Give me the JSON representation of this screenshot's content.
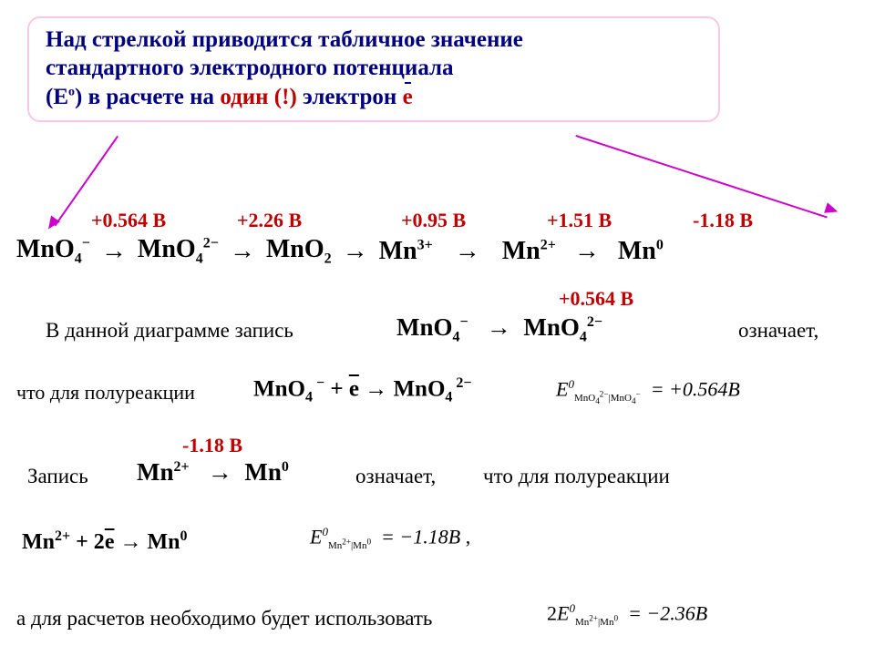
{
  "header": {
    "line1": "Над стрелкой приводится табличное значение",
    "line2": "стандартного электродного потенциала",
    "line3_a": "(E",
    "line3_sup": "о",
    "line3_b": ") в расчете на ",
    "line3_red": "один (!)",
    "line3_c": " электрон ",
    "line3_ebar": "е"
  },
  "chain": {
    "potentials": [
      "+0.564 В",
      "+2.26 В",
      "+0.95 В",
      "+1.51 В",
      "-1.18 В"
    ],
    "potential_widths": [
      162,
      190,
      172,
      166,
      158
    ],
    "species_html": [
      "MnO<span class='sub'>4</span><span class='sup2'>−</span>",
      "MnO<span class='sub'>4</span><span class='sup2'>2−</span>",
      "MnO<span class='sub'>2</span>",
      "Mn<span class='sup2'>3+</span>",
      "Mn<span class='sup2'>2+</span>",
      "Mn<span class='sup2'>0</span>"
    ],
    "arrow": "→"
  },
  "explain1": {
    "intro": "В данной диаграмме запись",
    "lhs": "MnO<span class='sub'>4</span><span class='sup2'>−</span>",
    "rhs": "MnO<span class='sub'>4</span><span class='sup2'>2−</span>",
    "arrow": "→",
    "pot": "+0.564 В",
    "trail": "означает,"
  },
  "explain2": {
    "intro": "что для полуреакции",
    "rxn": "MnO<span class='sub'>4</span><span class='sup2'>&nbsp;−</span> + <span class='overline'>е</span> → MnO<span class='sub'>4</span><span class='sup2'>&nbsp;2−</span>",
    "E": "E",
    "sup0": "0",
    "sub_pair": "MnO<sub>4</sub><sup>2−</sup>|MnO<sub>4</sub><sup>−</sup>",
    "eq": "= +0.564",
    "unit": "В"
  },
  "explain3": {
    "pot": "-1.18 В",
    "word": "Запись",
    "lhs": "Mn<span class='sup2'>2+</span>",
    "arrow": "→",
    "rhs": "Mn<span class='sup2'>0</span>",
    "mean": "означает,",
    "tail": "что для полуреакции"
  },
  "explain4": {
    "rxn": "Mn<span class='sup2'>2+</span> + 2<span class='overline'>е</span> → Mn<span class='sup2'>0</span>",
    "E": "E",
    "sup0": "0",
    "sub_pair": "Mn<sup>2+</sup>|Mn<sup>0</sup>",
    "eq": "= −1.18",
    "unit": "В",
    "comma": " ,"
  },
  "final": {
    "text": "а для расчетов необходимо будет использовать",
    "two": "2",
    "E": "E",
    "sup0": "0",
    "sub_pair": "Mn<sup>2+</sup>|Mn<sup>0</sup>",
    "eq": "= −2.36",
    "unit": "В"
  },
  "colors": {
    "header_border": "#f8c8e8",
    "header_text": "#000080",
    "red": "#c00000",
    "arrow": "#cc00cc",
    "black": "#000000",
    "bg": "#ffffff"
  }
}
